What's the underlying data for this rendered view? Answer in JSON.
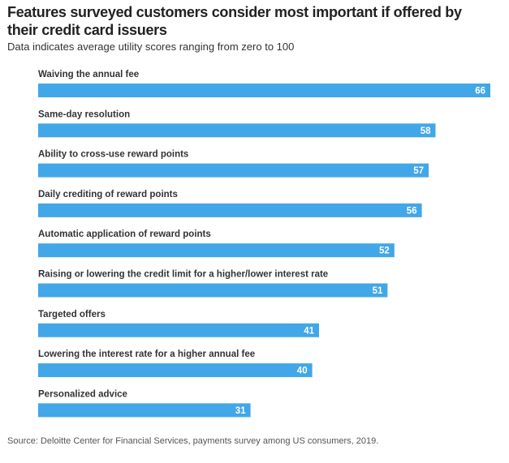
{
  "title": "Features surveyed customers consider most important if offered by their credit card issuers",
  "subtitle": "Data indicates average utility scores ranging from zero to 100",
  "source": "Source: Deloitte Center for Financial Services, payments survey among US consumers, 2019.",
  "colors": {
    "bar": "#41a7e8",
    "value_text": "#ffffff",
    "category_text": "#333333"
  },
  "chart_data": {
    "type": "bar",
    "orientation": "horizontal",
    "title": "Features surveyed customers consider most important if offered by their credit card issuers",
    "subtitle": "Data indicates average utility scores ranging from zero to 100",
    "categories": [
      "Waiving the annual fee",
      "Same-day resolution",
      "Ability to cross-use reward points",
      "Daily crediting of reward points",
      "Automatic application of reward points",
      "Raising or lowering the credit limit for a higher/lower interest rate",
      "Targeted offers",
      "Lowering the interest rate for a higher annual fee",
      "Personalized advice"
    ],
    "values": [
      66,
      58,
      57,
      56,
      52,
      51,
      41,
      40,
      31
    ],
    "xlim": [
      0,
      66
    ],
    "grid": false,
    "legend": "none",
    "data_labels": true
  }
}
